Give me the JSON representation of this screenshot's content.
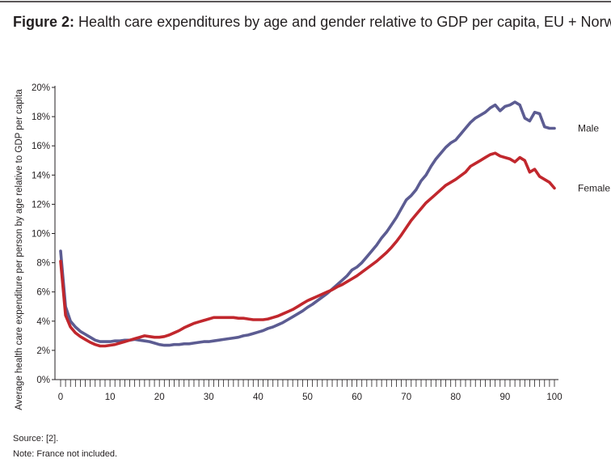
{
  "figure": {
    "title_prefix": "Figure 2:",
    "title_rest": " Health care expenditures by age and gender relative to GDP per capita, EU + Norway",
    "source": "Source: [2].",
    "note": "Note: France not included."
  },
  "chart_data": {
    "type": "line",
    "title": "Health care expenditures by age and gender relative to GDP per capita, EU + Norway",
    "xlabel": "",
    "ylabel": "Average health care expenditure per person by age relative to GDP per capita",
    "xlim": [
      0,
      100
    ],
    "ylim": [
      0,
      20
    ],
    "x_ticks": [
      0,
      10,
      20,
      30,
      40,
      50,
      60,
      70,
      80,
      90,
      100
    ],
    "y_ticks": [
      0,
      2,
      4,
      6,
      8,
      10,
      12,
      14,
      16,
      18,
      20
    ],
    "y_tick_labels": [
      "0%",
      "2%",
      "4%",
      "6%",
      "8%",
      "10%",
      "12%",
      "14%",
      "16%",
      "18%",
      "20%"
    ],
    "grid": false,
    "legend": "labels at line ends (right)",
    "x": [
      0,
      1,
      2,
      3,
      4,
      5,
      6,
      7,
      8,
      9,
      10,
      11,
      12,
      13,
      14,
      15,
      16,
      17,
      18,
      19,
      20,
      21,
      22,
      23,
      24,
      25,
      26,
      27,
      28,
      29,
      30,
      31,
      32,
      33,
      34,
      35,
      36,
      37,
      38,
      39,
      40,
      41,
      42,
      43,
      44,
      45,
      46,
      47,
      48,
      49,
      50,
      51,
      52,
      53,
      54,
      55,
      56,
      57,
      58,
      59,
      60,
      61,
      62,
      63,
      64,
      65,
      66,
      67,
      68,
      69,
      70,
      71,
      72,
      73,
      74,
      75,
      76,
      77,
      78,
      79,
      80,
      81,
      82,
      83,
      84,
      85,
      86,
      87,
      88,
      89,
      90,
      91,
      92,
      93,
      94,
      95,
      96,
      97,
      98,
      99,
      100
    ],
    "series": [
      {
        "name": "Male",
        "color": "#5c5c92",
        "values": [
          8.8,
          5.0,
          4.0,
          3.6,
          3.3,
          3.1,
          2.9,
          2.7,
          2.6,
          2.6,
          2.6,
          2.65,
          2.65,
          2.7,
          2.7,
          2.75,
          2.7,
          2.65,
          2.6,
          2.5,
          2.4,
          2.35,
          2.35,
          2.4,
          2.4,
          2.45,
          2.45,
          2.5,
          2.55,
          2.6,
          2.6,
          2.65,
          2.7,
          2.75,
          2.8,
          2.85,
          2.9,
          3.0,
          3.05,
          3.15,
          3.25,
          3.35,
          3.5,
          3.6,
          3.75,
          3.9,
          4.1,
          4.3,
          4.5,
          4.7,
          4.95,
          5.15,
          5.4,
          5.65,
          5.9,
          6.2,
          6.5,
          6.8,
          7.1,
          7.5,
          7.7,
          8.0,
          8.4,
          8.8,
          9.2,
          9.7,
          10.1,
          10.6,
          11.1,
          11.7,
          12.3,
          12.6,
          13.0,
          13.6,
          14.0,
          14.6,
          15.1,
          15.5,
          15.9,
          16.2,
          16.4,
          16.8,
          17.2,
          17.6,
          17.9,
          18.1,
          18.3,
          18.6,
          18.8,
          18.4,
          18.7,
          18.8,
          19.0,
          18.8,
          17.9,
          17.7,
          18.3,
          18.2,
          17.3,
          17.2,
          17.2
        ]
      },
      {
        "name": "Female",
        "color": "#c1272d",
        "values": [
          8.1,
          4.4,
          3.6,
          3.2,
          2.95,
          2.75,
          2.55,
          2.4,
          2.3,
          2.3,
          2.35,
          2.4,
          2.5,
          2.6,
          2.7,
          2.8,
          2.9,
          3.0,
          2.95,
          2.9,
          2.9,
          2.95,
          3.05,
          3.2,
          3.35,
          3.55,
          3.7,
          3.85,
          3.95,
          4.05,
          4.15,
          4.25,
          4.25,
          4.25,
          4.25,
          4.25,
          4.2,
          4.2,
          4.15,
          4.1,
          4.1,
          4.1,
          4.15,
          4.25,
          4.35,
          4.5,
          4.65,
          4.8,
          5.0,
          5.2,
          5.4,
          5.55,
          5.7,
          5.85,
          6.0,
          6.15,
          6.35,
          6.5,
          6.7,
          6.9,
          7.1,
          7.35,
          7.6,
          7.85,
          8.1,
          8.4,
          8.7,
          9.05,
          9.45,
          9.9,
          10.4,
          10.9,
          11.3,
          11.7,
          12.1,
          12.4,
          12.7,
          13.0,
          13.3,
          13.5,
          13.7,
          13.95,
          14.2,
          14.6,
          14.8,
          15.0,
          15.2,
          15.4,
          15.5,
          15.3,
          15.2,
          15.1,
          14.9,
          15.2,
          15.0,
          14.2,
          14.4,
          13.9,
          13.7,
          13.5,
          13.1
        ]
      }
    ]
  }
}
